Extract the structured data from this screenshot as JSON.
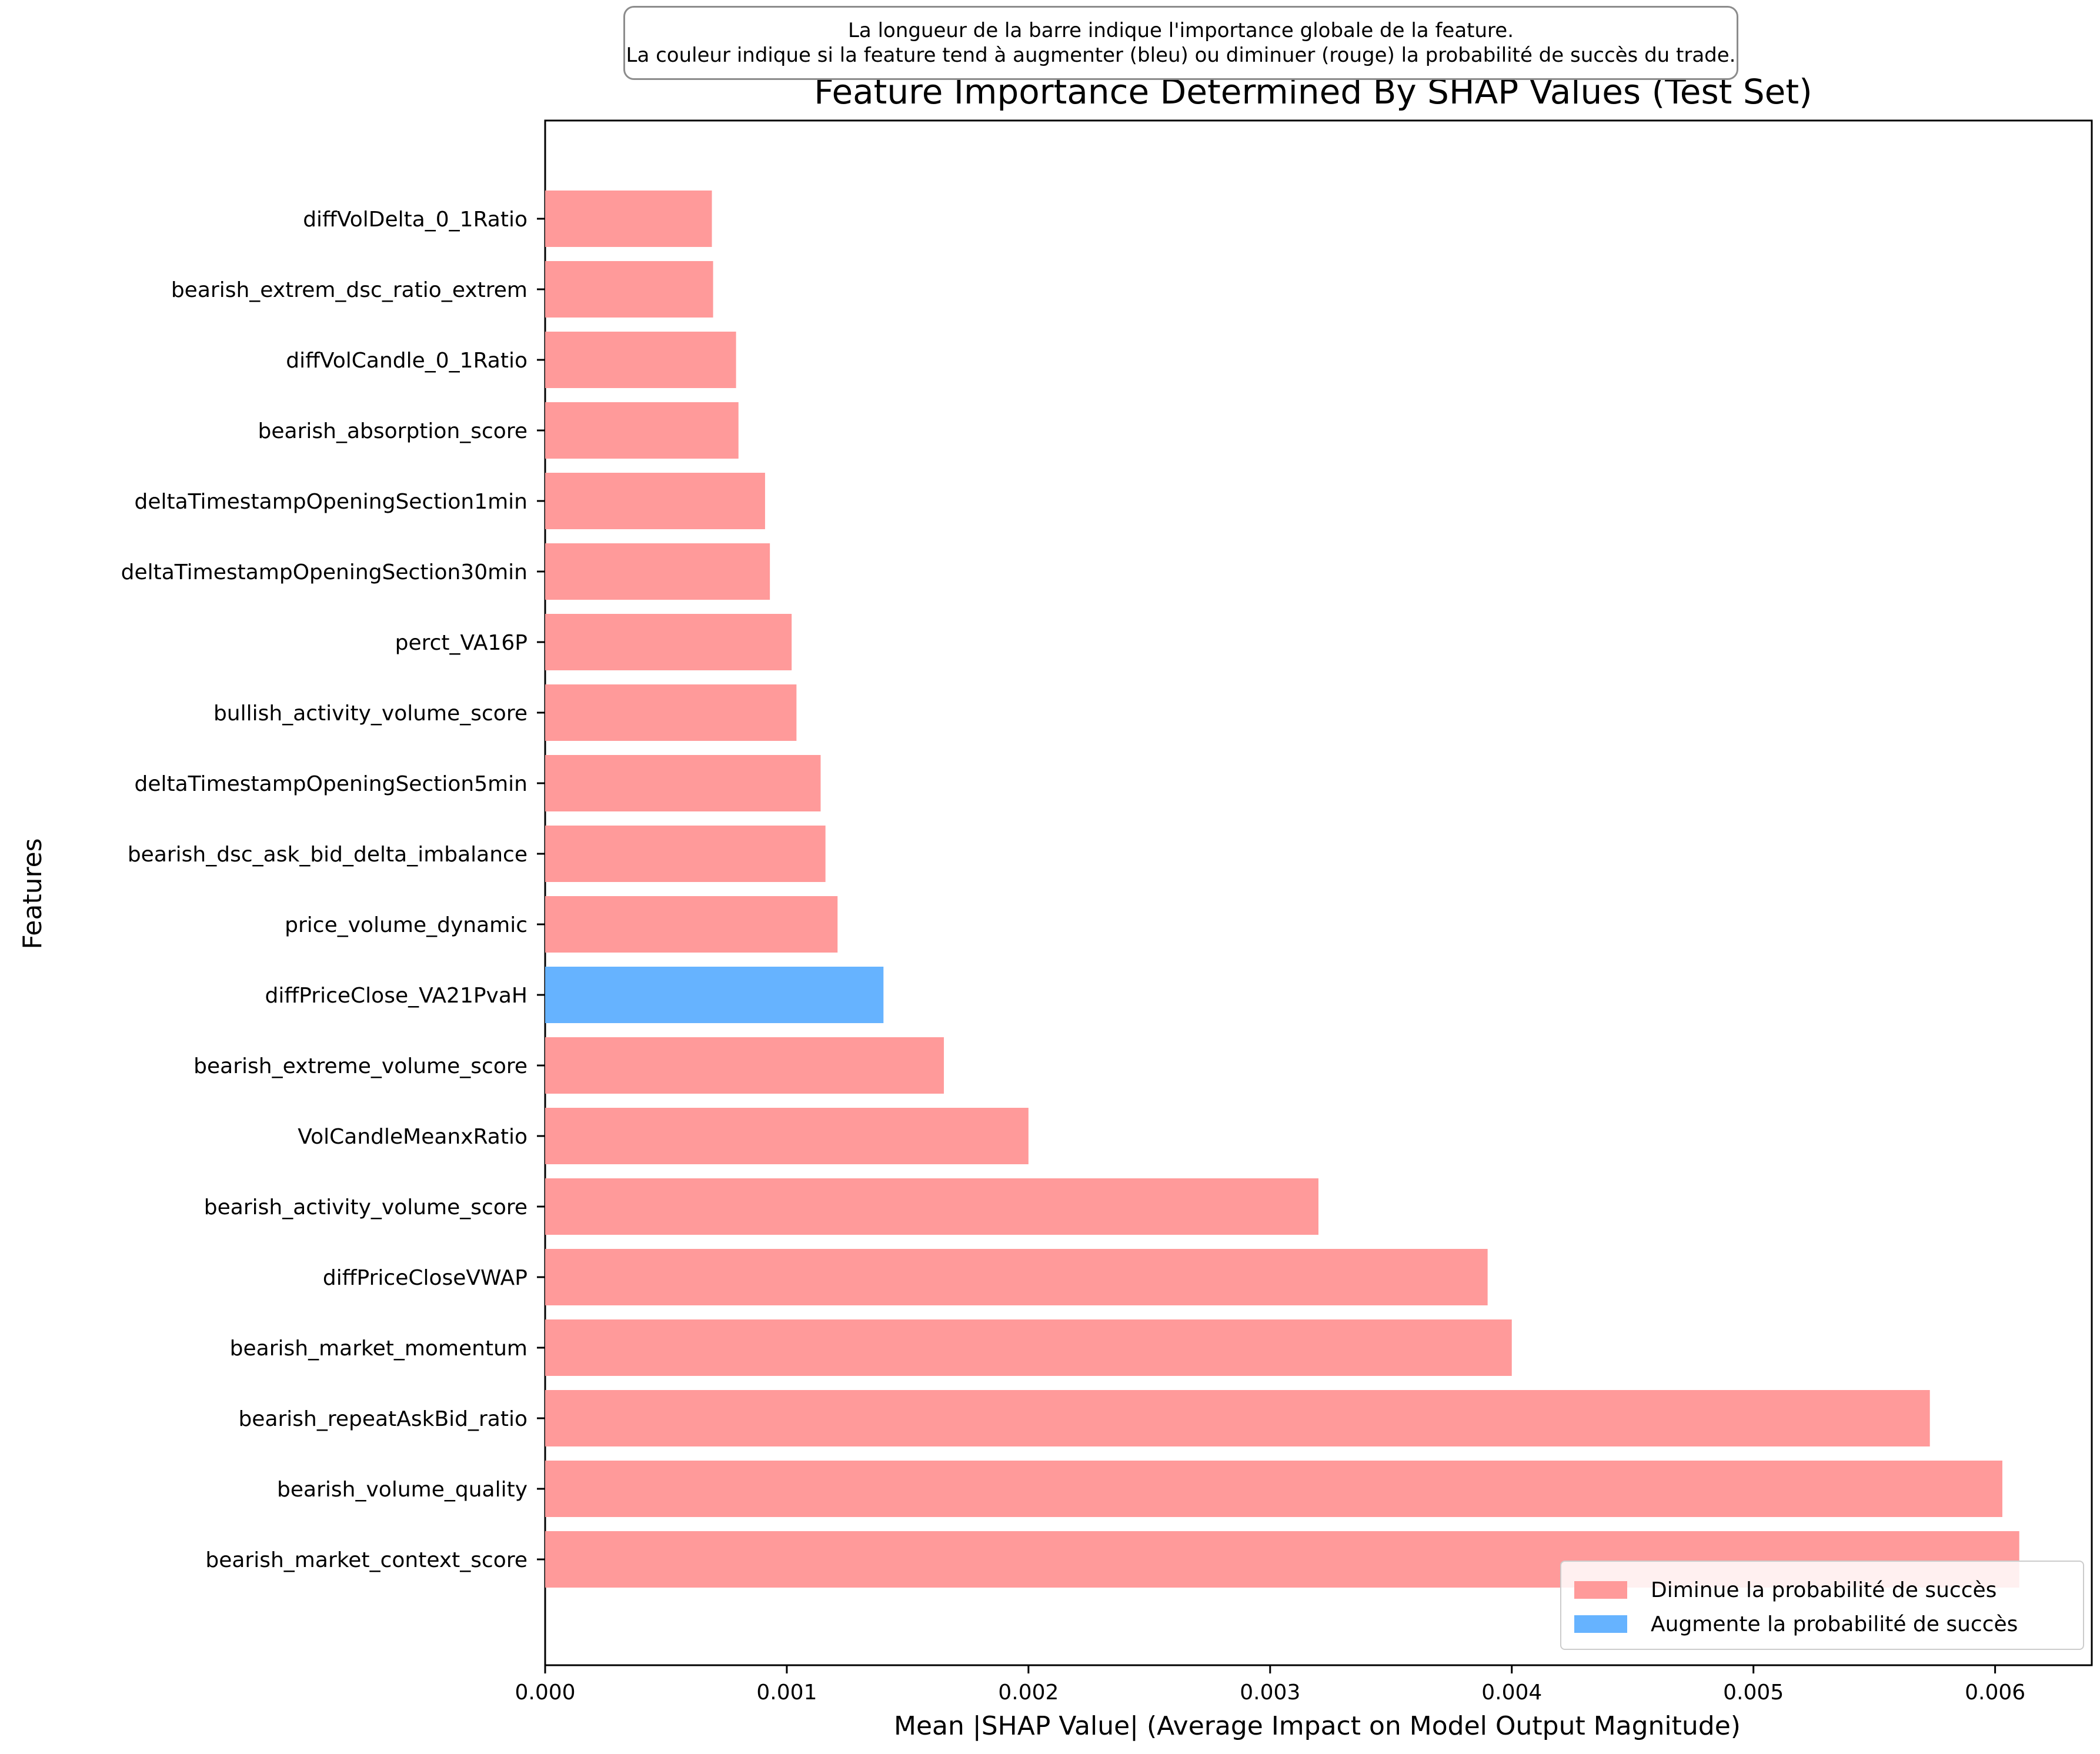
{
  "annotation": {
    "line1": "La longueur de la barre indique l'importance globale de la feature.",
    "line2": "La couleur indique si la feature tend à augmenter (bleu) ou diminuer (rouge) la probabilité de succès du trade."
  },
  "legend": {
    "items": [
      {
        "label": "Diminue la probabilité de succès",
        "color": "#ff9a9a"
      },
      {
        "label": "Augmente la probabilité de succès",
        "color": "#66b3ff"
      }
    ]
  },
  "chart_data": {
    "type": "bar",
    "orientation": "horizontal",
    "title": "Feature Importance Determined By SHAP Values (Test Set)",
    "xlabel": "Mean |SHAP Value| (Average Impact on Model Output Magnitude)",
    "ylabel": "Features",
    "xlim": [
      0,
      0.0064
    ],
    "xticks": [
      "0.000",
      "0.001",
      "0.002",
      "0.003",
      "0.004",
      "0.005",
      "0.006"
    ],
    "xtick_values": [
      0,
      0.001,
      0.002,
      0.003,
      0.004,
      0.005,
      0.006
    ],
    "grid": false,
    "legend_position": "bottom-right",
    "colors": {
      "decrease": "#ff9a9a",
      "increase": "#66b3ff"
    },
    "bars": [
      {
        "feature": "diffVolDelta_0_1Ratio",
        "value": 0.00069,
        "direction": "decrease"
      },
      {
        "feature": "bearish_extrem_dsc_ratio_extrem",
        "value": 0.000695,
        "direction": "decrease"
      },
      {
        "feature": "diffVolCandle_0_1Ratio",
        "value": 0.00079,
        "direction": "decrease"
      },
      {
        "feature": "bearish_absorption_score",
        "value": 0.0008,
        "direction": "decrease"
      },
      {
        "feature": "deltaTimestampOpeningSection1min",
        "value": 0.00091,
        "direction": "decrease"
      },
      {
        "feature": "deltaTimestampOpeningSection30min",
        "value": 0.00093,
        "direction": "decrease"
      },
      {
        "feature": "perct_VA16P",
        "value": 0.00102,
        "direction": "decrease"
      },
      {
        "feature": "bullish_activity_volume_score",
        "value": 0.00104,
        "direction": "decrease"
      },
      {
        "feature": "deltaTimestampOpeningSection5min",
        "value": 0.00114,
        "direction": "decrease"
      },
      {
        "feature": "bearish_dsc_ask_bid_delta_imbalance",
        "value": 0.00116,
        "direction": "decrease"
      },
      {
        "feature": "price_volume_dynamic",
        "value": 0.00121,
        "direction": "decrease"
      },
      {
        "feature": "diffPriceClose_VA21PvaH",
        "value": 0.0014,
        "direction": "increase"
      },
      {
        "feature": "bearish_extreme_volume_score",
        "value": 0.00165,
        "direction": "decrease"
      },
      {
        "feature": "VolCandleMeanxRatio",
        "value": 0.002,
        "direction": "decrease"
      },
      {
        "feature": "bearish_activity_volume_score",
        "value": 0.0032,
        "direction": "decrease"
      },
      {
        "feature": "diffPriceCloseVWAP",
        "value": 0.0039,
        "direction": "decrease"
      },
      {
        "feature": "bearish_market_momentum",
        "value": 0.004,
        "direction": "decrease"
      },
      {
        "feature": "bearish_repeatAskBid_ratio",
        "value": 0.00573,
        "direction": "decrease"
      },
      {
        "feature": "bearish_volume_quality",
        "value": 0.00603,
        "direction": "decrease"
      },
      {
        "feature": "bearish_market_context_score",
        "value": 0.0061,
        "direction": "decrease"
      }
    ]
  }
}
